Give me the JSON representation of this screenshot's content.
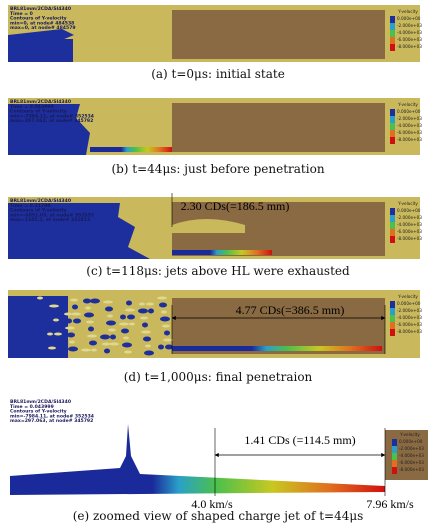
{
  "panels": [
    {
      "header": [
        "BRL81mm/2CDA/SI4340",
        "Time = 0",
        "Contours of Y-velocity",
        "min=0, at node# 484538",
        "max=0, at node# 484579"
      ],
      "legend_title": "Y-velocity",
      "legend_values": [
        "0.000e+00",
        "-2.000e+03",
        "-4.000e+03",
        "-6.000e+03",
        "-8.000e+03"
      ],
      "annotations": [],
      "caption": "(a) t=0μs: initial state"
    },
    {
      "header": [
        "BRL81mm/2CDA/SI4340",
        "Time = 0.043999",
        "Contours of Y-velocity",
        "min=-7984.11, at node# 352534",
        "max=297.063, at node# 345792"
      ],
      "legend_title": "Y-velocity",
      "legend_values": [
        "0.000e+00",
        "-2.000e+03",
        "-4.000e+03",
        "-6.000e+03",
        "-8.000e+03"
      ],
      "annotations": [],
      "caption": "(b) t=44μs: just before penetration"
    },
    {
      "header": [
        "BRL81mm/2CDA/SI4340",
        "Time = 0.11799",
        "Contours of Y-velocity",
        "min=-6051.05, at node# 352553",
        "max=1345.2, at node# 331013"
      ],
      "legend_title": "Y-velocity",
      "legend_values": [
        "0.000e+00",
        "-2.000e+03",
        "-4.000e+03",
        "-6.000e+03",
        "-8.000e+03"
      ],
      "annotations": [
        "2.30 CDs(=186.5 mm)"
      ],
      "caption": "(c) t=118μs: jets above HL were exhausted"
    },
    {
      "header": [],
      "legend_title": "Y-velocity",
      "legend_values": [
        "0.000e+00",
        "-2.000e+03",
        "-4.000e+03",
        "-6.000e+03",
        "-8.000e+03"
      ],
      "annotations": [
        "4.77 CDs(=386.5 mm)"
      ],
      "caption": "(d) t=1,000μs: final penetraion"
    },
    {
      "header": [
        "BRL81mm/2CDA/SI4340",
        "Time = 0.043999",
        "Contours of Y-velocity",
        "min=-7984.11, at node# 352534",
        "max=297.063, at node# 345792"
      ],
      "legend_title": "Y-velocity",
      "legend_values": [
        "0.000e+00",
        "-2.000e+03",
        "-4.000e+03",
        "-6.000e+03",
        "-8.000e+03"
      ],
      "annotations": [
        "1.41 CDs (=114.5 mm)",
        "4.0 km/s",
        "7.96 km/s"
      ],
      "caption": "(e) zoomed view of shaped charge jet of t=44μs"
    }
  ]
}
